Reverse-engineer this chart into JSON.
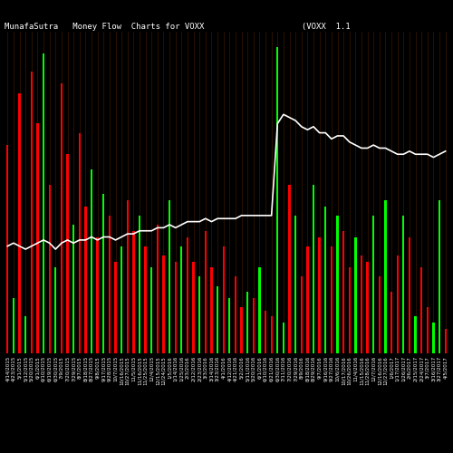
{
  "title": "MunafaSutra   Money Flow  Charts for VOXX                    (VOXX  1.1                                           cr",
  "background_color": "#000000",
  "bar_colors_pattern": [
    "red",
    "green",
    "red",
    "green",
    "red",
    "red",
    "green",
    "red",
    "green",
    "red",
    "red",
    "green",
    "red",
    "red",
    "green",
    "red",
    "green",
    "red",
    "red",
    "green",
    "red",
    "red",
    "green",
    "red",
    "green",
    "red",
    "red",
    "green",
    "red",
    "green",
    "red",
    "red",
    "green",
    "red",
    "red",
    "green",
    "red",
    "green",
    "red",
    "red",
    "green",
    "red",
    "green",
    "red",
    "red",
    "green",
    "green",
    "red",
    "green",
    "red",
    "red",
    "green",
    "red",
    "green",
    "red",
    "green",
    "red",
    "red",
    "green",
    "red",
    "red",
    "green",
    "red",
    "green",
    "red",
    "red",
    "green",
    "red",
    "green",
    "red",
    "red",
    "green",
    "green",
    "red"
  ],
  "bar_heights": [
    0.68,
    0.18,
    0.85,
    0.12,
    0.92,
    0.75,
    0.98,
    0.55,
    0.28,
    0.88,
    0.65,
    0.42,
    0.72,
    0.48,
    0.6,
    0.38,
    0.52,
    0.45,
    0.3,
    0.35,
    0.5,
    0.4,
    0.45,
    0.35,
    0.28,
    0.42,
    0.32,
    0.5,
    0.3,
    0.35,
    0.38,
    0.3,
    0.25,
    0.4,
    0.28,
    0.22,
    0.35,
    0.18,
    0.25,
    0.15,
    0.2,
    0.18,
    0.28,
    0.14,
    0.12,
    1.0,
    0.1,
    0.55,
    0.45,
    0.25,
    0.35,
    0.55,
    0.38,
    0.48,
    0.35,
    0.45,
    0.4,
    0.28,
    0.38,
    0.32,
    0.3,
    0.45,
    0.25,
    0.5,
    0.2,
    0.32,
    0.45,
    0.38,
    0.12,
    0.28,
    0.15,
    0.1,
    0.5,
    0.08
  ],
  "line_values": [
    0.35,
    0.36,
    0.35,
    0.34,
    0.35,
    0.36,
    0.37,
    0.36,
    0.34,
    0.36,
    0.37,
    0.36,
    0.37,
    0.37,
    0.38,
    0.37,
    0.38,
    0.38,
    0.37,
    0.38,
    0.39,
    0.39,
    0.4,
    0.4,
    0.4,
    0.41,
    0.41,
    0.42,
    0.41,
    0.42,
    0.43,
    0.43,
    0.43,
    0.44,
    0.43,
    0.44,
    0.44,
    0.44,
    0.44,
    0.45,
    0.45,
    0.45,
    0.45,
    0.45,
    0.45,
    0.75,
    0.78,
    0.77,
    0.76,
    0.74,
    0.73,
    0.74,
    0.72,
    0.72,
    0.7,
    0.71,
    0.71,
    0.69,
    0.68,
    0.67,
    0.67,
    0.68,
    0.67,
    0.67,
    0.66,
    0.65,
    0.65,
    0.66,
    0.65,
    0.65,
    0.65,
    0.64,
    0.65,
    0.66
  ],
  "n_bars": 74,
  "xlabel_dates": [
    "4/14/2015",
    "4/23/2015",
    "5/1/2015",
    "5/12/2015",
    "5/20/2015",
    "6/1/2015",
    "6/10/2015",
    "6/19/2015",
    "6/30/2015",
    "7/9/2015",
    "7/20/2015",
    "7/29/2015",
    "8/7/2015",
    "8/18/2015",
    "8/27/2015",
    "9/8/2015",
    "9/17/2015",
    "9/28/2015",
    "10/7/2015",
    "10/16/2015",
    "10/27/2015",
    "11/5/2015",
    "11/16/2015",
    "11/25/2015",
    "12/4/2015",
    "12/15/2015",
    "12/24/2015",
    "1/5/2016",
    "1/14/2016",
    "1/25/2016",
    "2/3/2016",
    "2/12/2016",
    "2/23/2016",
    "3/3/2016",
    "3/14/2016",
    "3/23/2016",
    "4/1/2016",
    "4/12/2016",
    "4/21/2016",
    "5/2/2016",
    "5/11/2016",
    "5/20/2016",
    "6/1/2016",
    "6/10/2016",
    "6/21/2016",
    "6/30/2016",
    "7/11/2016",
    "7/20/2016",
    "7/29/2016",
    "8/9/2016",
    "8/18/2016",
    "8/29/2016",
    "9/7/2016",
    "9/16/2016",
    "9/27/2016",
    "10/6/2016",
    "10/17/2016",
    "10/26/2016",
    "11/4/2016",
    "11/15/2016",
    "11/28/2016",
    "12/7/2016",
    "12/16/2016",
    "12/27/2016",
    "1/6/2017",
    "1/17/2017",
    "1/26/2017",
    "2/6/2017",
    "2/15/2017",
    "2/24/2017",
    "3/7/2017",
    "3/16/2017",
    "3/27/2017",
    "4/5/2017"
  ],
  "title_color": "#ffffff",
  "title_fontsize": 6.5,
  "tick_color": "#ffffff",
  "tick_fontsize": 4,
  "line_color": "#ffffff",
  "line_width": 1.2,
  "bar_width": 0.35,
  "grid_color": "#3a1800",
  "ylim": [
    0,
    1.05
  ],
  "red_color": "#ff0000",
  "green_color": "#00ff00",
  "fig_width": 5.0,
  "fig_height": 5.0,
  "dpi": 100
}
